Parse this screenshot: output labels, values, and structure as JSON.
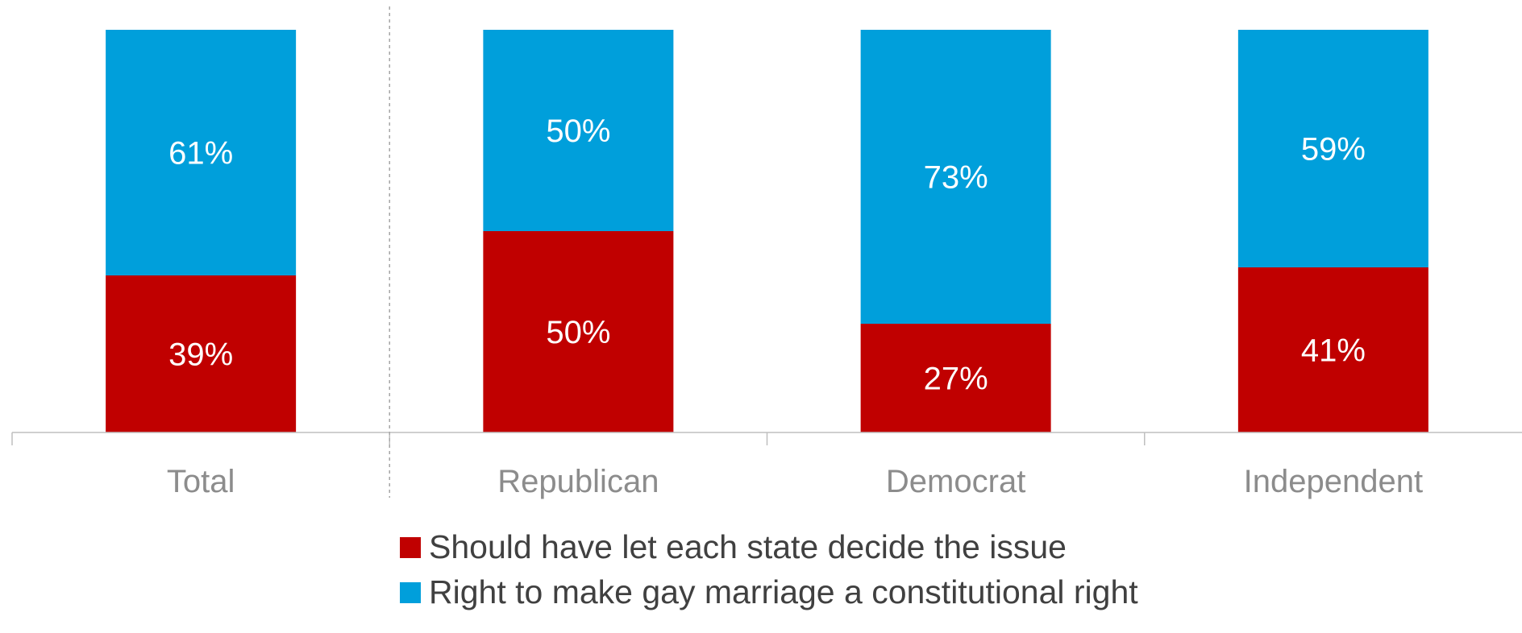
{
  "chart_data": {
    "type": "bar",
    "stacked": true,
    "percent_stacked": true,
    "categories": [
      "Total",
      "Republican",
      "Democrat",
      "Independent"
    ],
    "series": [
      {
        "name": "Should have let each state decide the issue",
        "color": "#c00000",
        "values": [
          39,
          50,
          27,
          41
        ],
        "labels": [
          "39%",
          "50%",
          "27%",
          "41%"
        ]
      },
      {
        "name": "Right to make gay marriage a constitutional right",
        "color": "#009fdb",
        "values": [
          61,
          50,
          73,
          59
        ],
        "labels": [
          "61%",
          "50%",
          "73%",
          "59%"
        ]
      }
    ],
    "ylim": [
      0,
      100
    ],
    "title": "",
    "xlabel": "",
    "ylabel": "",
    "grid": false,
    "legend_position": "bottom",
    "separator_after_category": "Total"
  }
}
